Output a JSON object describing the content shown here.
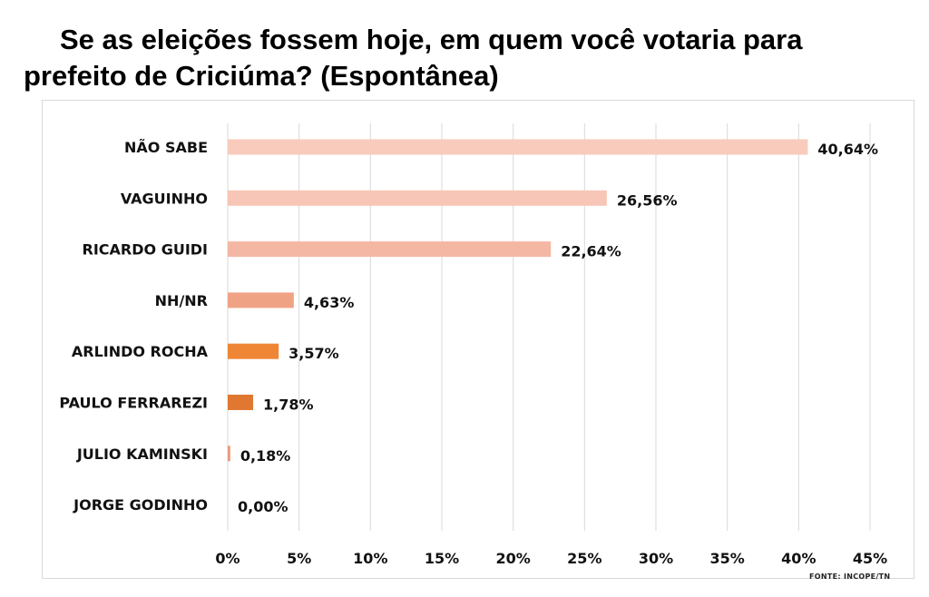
{
  "chart_data": {
    "type": "bar",
    "orientation": "horizontal",
    "title_line1": "Se as eleições fossem hoje, em quem você votaria para",
    "title_line2": "prefeito de Criciúma? (Espontânea)",
    "categories": [
      "NÃO SABE",
      "VAGUINHO",
      "RICARDO GUIDI",
      "NH/NR",
      "ARLINDO ROCHA",
      "PAULO FERRAREZI",
      "JULIO KAMINSKI",
      "JORGE GODINHO"
    ],
    "values": [
      40.64,
      26.56,
      22.64,
      4.63,
      3.57,
      1.78,
      0.18,
      0.0
    ],
    "value_labels": [
      "40,64%",
      "26,56%",
      "22,64%",
      "4,63%",
      "3,57%",
      "1,78%",
      "0,18%",
      "0,00%"
    ],
    "colors": [
      "#f8cbbd",
      "#f8c6b6",
      "#f4b7a4",
      "#f0a285",
      "#ee8636",
      "#e07832",
      "#ec9a80",
      "#ec9a80"
    ],
    "xlim": [
      0,
      45
    ],
    "xticks": [
      0,
      5,
      10,
      15,
      20,
      25,
      30,
      35,
      40,
      45
    ],
    "xtick_labels": [
      "0%",
      "5%",
      "10%",
      "15%",
      "20%",
      "25%",
      "30%",
      "35%",
      "40%",
      "45%"
    ],
    "grid": true,
    "legend": "none"
  },
  "source_note": "FONTE: INCOPE/TN"
}
